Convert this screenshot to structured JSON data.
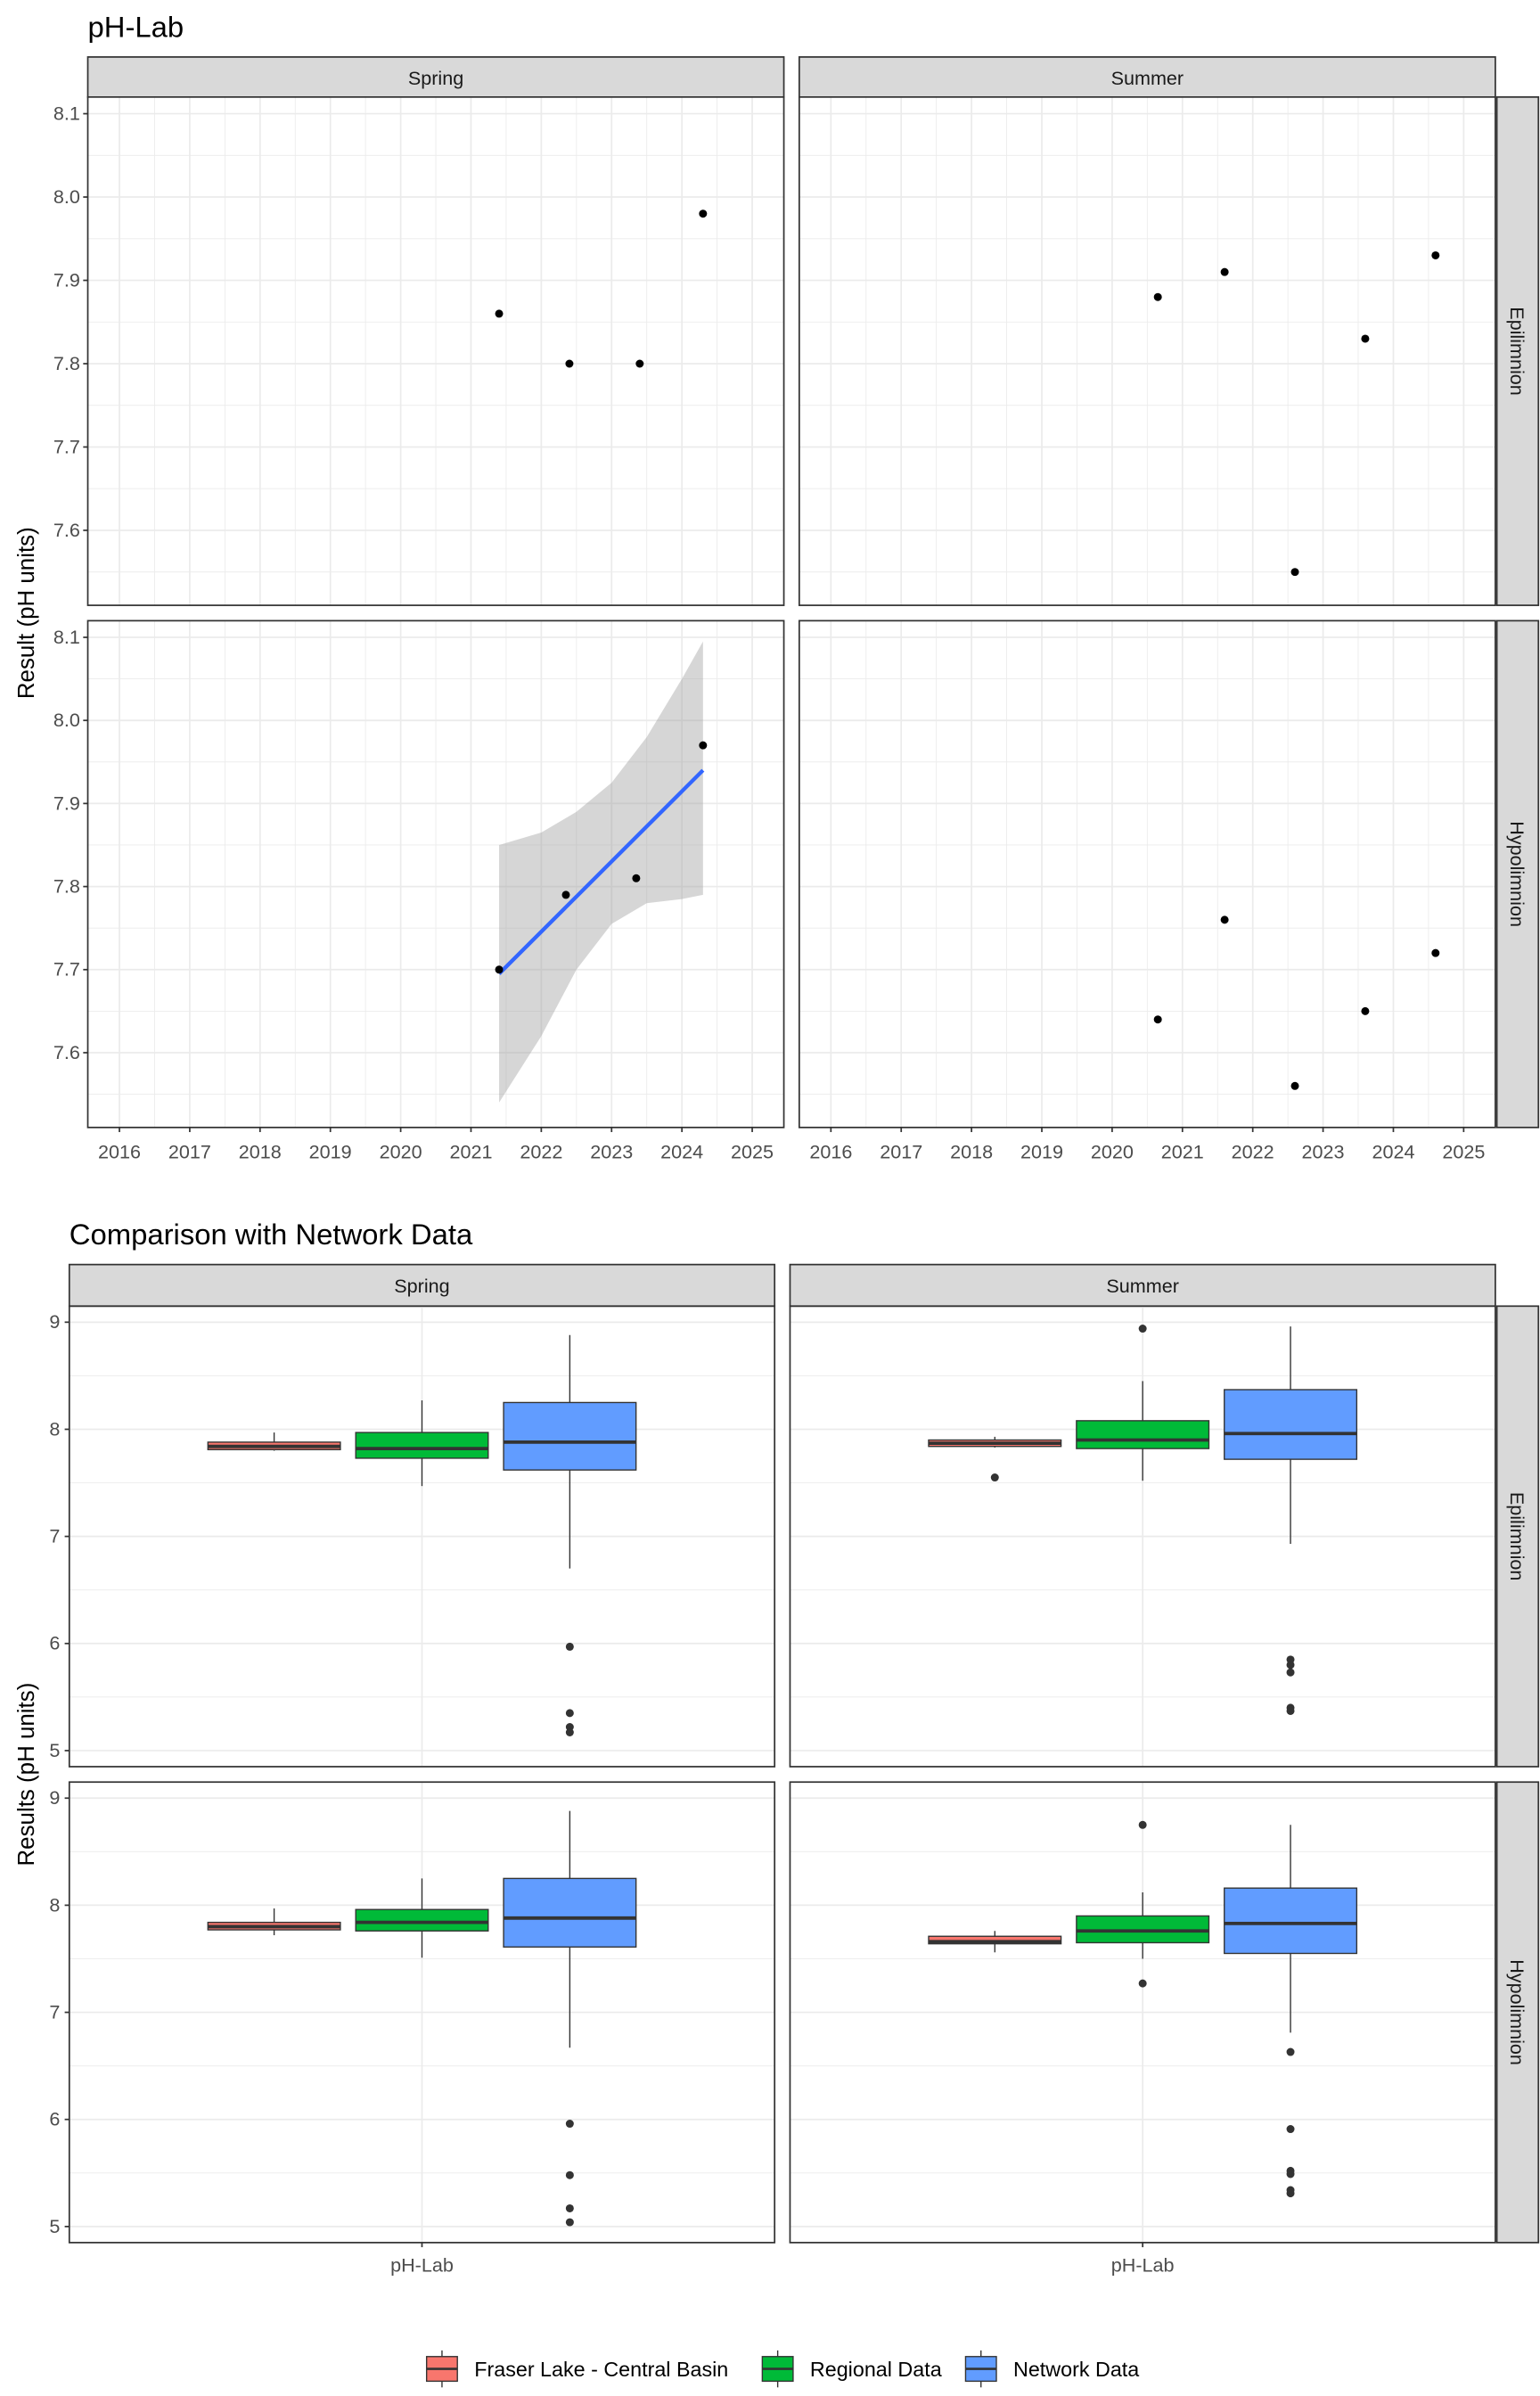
{
  "chart_data": [
    {
      "type": "scatter",
      "title": "pH-Lab",
      "xlabel": "",
      "ylabel": "Result (pH units)",
      "xlim": [
        2015.55,
        2025.45
      ],
      "ylim": [
        7.51,
        8.12
      ],
      "x_ticks": [
        "2016",
        "2017",
        "2018",
        "2019",
        "2020",
        "2021",
        "2022",
        "2023",
        "2024",
        "2025"
      ],
      "y_ticks": [
        "7.6",
        "7.7",
        "7.8",
        "7.9",
        "8.0",
        "8.1"
      ],
      "col_facets": [
        "Spring",
        "Summer"
      ],
      "row_facets": [
        "Epilimnion",
        "Hypolimnion"
      ],
      "panels": [
        {
          "col": 0,
          "row": 0,
          "points": [
            [
              2021.4,
              7.86
            ],
            [
              2022.4,
              7.8
            ],
            [
              2023.4,
              7.8
            ],
            [
              2024.3,
              7.98
            ]
          ]
        },
        {
          "col": 1,
          "row": 0,
          "points": [
            [
              2020.65,
              7.88
            ],
            [
              2021.6,
              7.91
            ],
            [
              2022.6,
              7.55
            ],
            [
              2023.6,
              7.83
            ],
            [
              2024.6,
              7.93
            ]
          ]
        },
        {
          "col": 0,
          "row": 1,
          "points": [
            [
              2021.4,
              7.7
            ],
            [
              2022.35,
              7.79
            ],
            [
              2023.35,
              7.81
            ],
            [
              2024.3,
              7.97
            ]
          ],
          "trend": {
            "line": [
              [
                2021.4,
                7.695
              ],
              [
                2024.3,
                7.94
              ]
            ],
            "ribbon_upper": [
              [
                2021.4,
                7.85
              ],
              [
                2022.0,
                7.865
              ],
              [
                2022.5,
                7.89
              ],
              [
                2023.0,
                7.925
              ],
              [
                2023.5,
                7.98
              ],
              [
                2024.0,
                8.05
              ],
              [
                2024.3,
                8.095
              ]
            ],
            "ribbon_lower": [
              [
                2021.4,
                7.54
              ],
              [
                2022.0,
                7.62
              ],
              [
                2022.5,
                7.7
              ],
              [
                2023.0,
                7.755
              ],
              [
                2023.5,
                7.78
              ],
              [
                2024.0,
                7.785
              ],
              [
                2024.3,
                7.79
              ]
            ]
          }
        },
        {
          "col": 1,
          "row": 1,
          "points": [
            [
              2020.65,
              7.64
            ],
            [
              2021.6,
              7.76
            ],
            [
              2022.6,
              7.56
            ],
            [
              2023.6,
              7.65
            ],
            [
              2024.6,
              7.72
            ]
          ]
        }
      ]
    },
    {
      "type": "box",
      "title": "Comparison with Network Data",
      "xlabel": "",
      "ylabel": "Results (pH units)",
      "categories": [
        "pH-Lab"
      ],
      "ylim": [
        4.85,
        9.15
      ],
      "y_ticks": [
        "5",
        "6",
        "7",
        "8",
        "9"
      ],
      "col_facets": [
        "Spring",
        "Summer"
      ],
      "row_facets": [
        "Epilimnion",
        "Hypolimnion"
      ],
      "legend": {
        "position": "bottom",
        "entries": [
          {
            "name": "Fraser Lake - Central Basin",
            "color": "#F8766D"
          },
          {
            "name": "Regional Data",
            "color": "#00BA38"
          },
          {
            "name": "Network Data",
            "color": "#619CFF"
          }
        ]
      },
      "panels": [
        {
          "col": 0,
          "row": 0,
          "boxes": [
            {
              "lo": 7.8,
              "q1": 7.81,
              "med": 7.84,
              "q3": 7.88,
              "hi": 7.97,
              "out": []
            },
            {
              "lo": 7.47,
              "q1": 7.73,
              "med": 7.82,
              "q3": 7.97,
              "hi": 8.27,
              "out": []
            },
            {
              "lo": 6.7,
              "q1": 7.62,
              "med": 7.88,
              "q3": 8.25,
              "hi": 8.88,
              "out": [
                5.97,
                5.35,
                5.22,
                5.17
              ]
            }
          ]
        },
        {
          "col": 1,
          "row": 0,
          "boxes": [
            {
              "lo": 7.83,
              "q1": 7.84,
              "med": 7.87,
              "q3": 7.9,
              "hi": 7.93,
              "out": [
                7.55
              ]
            },
            {
              "lo": 7.52,
              "q1": 7.82,
              "med": 7.9,
              "q3": 8.08,
              "hi": 8.45,
              "out": [
                8.94
              ]
            },
            {
              "lo": 6.93,
              "q1": 7.72,
              "med": 7.96,
              "q3": 8.37,
              "hi": 8.96,
              "out": [
                5.85,
                5.8,
                5.73,
                5.4,
                5.37
              ]
            }
          ]
        },
        {
          "col": 0,
          "row": 1,
          "boxes": [
            {
              "lo": 7.72,
              "q1": 7.77,
              "med": 7.8,
              "q3": 7.84,
              "hi": 7.97,
              "out": []
            },
            {
              "lo": 7.51,
              "q1": 7.76,
              "med": 7.84,
              "q3": 7.96,
              "hi": 8.25,
              "out": []
            },
            {
              "lo": 6.67,
              "q1": 7.61,
              "med": 7.88,
              "q3": 8.25,
              "hi": 8.88,
              "out": [
                5.96,
                5.48,
                5.17,
                5.04
              ]
            }
          ]
        },
        {
          "col": 1,
          "row": 1,
          "boxes": [
            {
              "lo": 7.56,
              "q1": 7.64,
              "med": 7.66,
              "q3": 7.71,
              "hi": 7.76,
              "out": []
            },
            {
              "lo": 7.5,
              "q1": 7.65,
              "med": 7.76,
              "q3": 7.9,
              "hi": 8.12,
              "out": [
                8.75,
                7.27
              ]
            },
            {
              "lo": 6.81,
              "q1": 7.55,
              "med": 7.83,
              "q3": 8.16,
              "hi": 8.75,
              "out": [
                6.63,
                5.91,
                5.52,
                5.49,
                5.34,
                5.31
              ]
            }
          ]
        }
      ]
    }
  ]
}
